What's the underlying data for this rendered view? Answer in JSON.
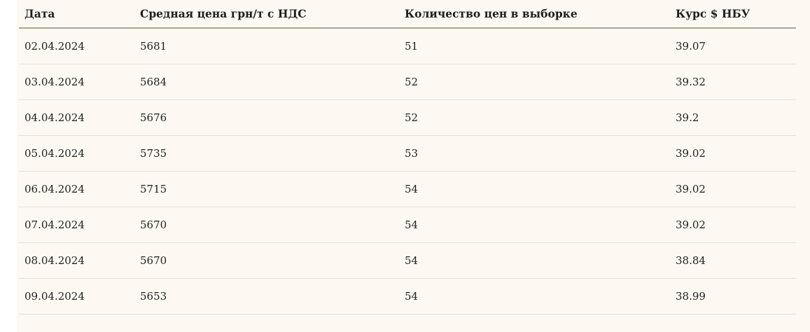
{
  "table": {
    "columns": [
      {
        "key": "date",
        "label": "Дата"
      },
      {
        "key": "price",
        "label": "Средная цена грн/т с НДС"
      },
      {
        "key": "count",
        "label": "Количество цен в выборке"
      },
      {
        "key": "rate",
        "label": "Курс $ НБУ"
      }
    ],
    "rows": [
      {
        "date": "02.04.2024",
        "price": "5681",
        "count": "51",
        "rate": "39.07"
      },
      {
        "date": "03.04.2024",
        "price": "5684",
        "count": "52",
        "rate": "39.32"
      },
      {
        "date": "04.04.2024",
        "price": "5676",
        "count": "52",
        "rate": "39.2"
      },
      {
        "date": "05.04.2024",
        "price": "5735",
        "count": "53",
        "rate": "39.02"
      },
      {
        "date": "06.04.2024",
        "price": "5715",
        "count": "54",
        "rate": "39.02"
      },
      {
        "date": "07.04.2024",
        "price": "5670",
        "count": "54",
        "rate": "39.02"
      },
      {
        "date": "08.04.2024",
        "price": "5670",
        "count": "54",
        "rate": "38.84"
      },
      {
        "date": "09.04.2024",
        "price": "5653",
        "count": "54",
        "rate": "38.99"
      }
    ]
  },
  "colors": {
    "page_background": "#ffffff",
    "panel_background": "#fdf9f2",
    "header_rule": "#a5a693",
    "row_separator": "#e4e1da",
    "text": "#1f1f1f"
  }
}
